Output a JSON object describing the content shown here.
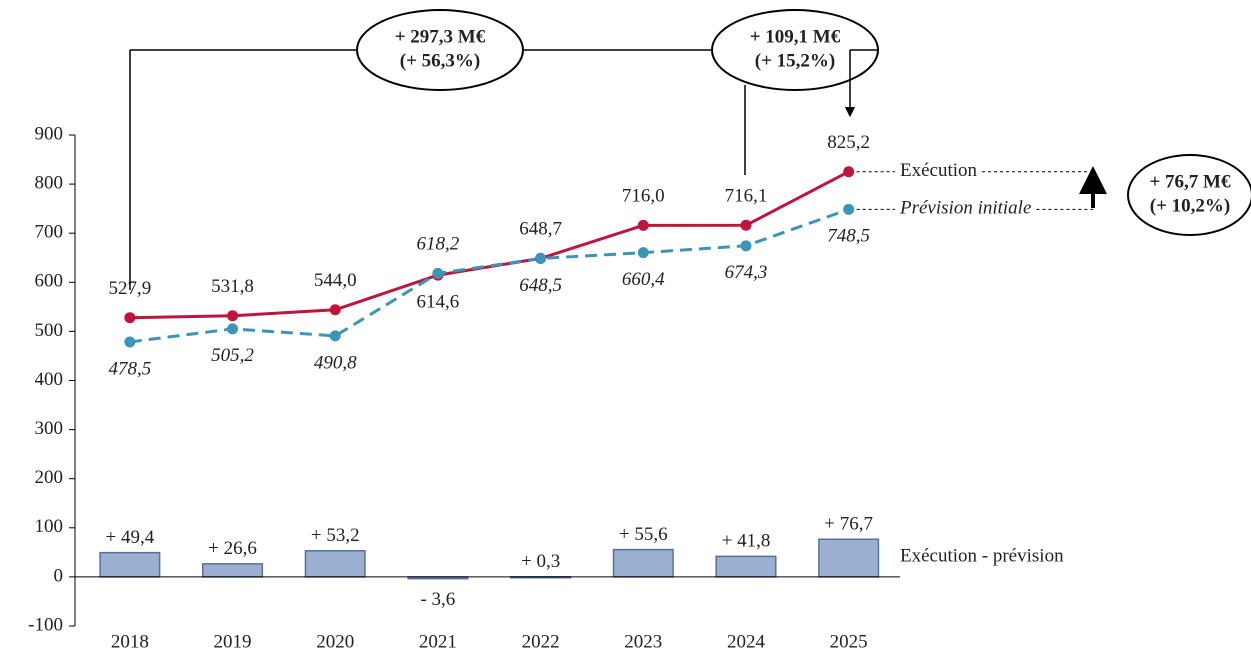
{
  "chart_data": {
    "type": "line-bar",
    "categories": [
      "2018",
      "2019",
      "2020",
      "2021",
      "2022",
      "2023",
      "2024",
      "2025"
    ],
    "ylim": [
      -100,
      900
    ],
    "yticks": [
      -100,
      0,
      100,
      200,
      300,
      400,
      500,
      600,
      700,
      800,
      900
    ],
    "series": [
      {
        "name": "Exécution",
        "type": "line",
        "color": "#c0143c",
        "values": [
          527.9,
          531.8,
          544.0,
          614.6,
          648.7,
          716.0,
          716.1,
          825.2
        ],
        "value_labels": [
          "527,9",
          "531,8",
          "544,0",
          "614,6",
          "648,7",
          "716,0",
          "716,1",
          "825,2"
        ]
      },
      {
        "name": "Prévision initiale",
        "type": "line",
        "dashed": true,
        "color": "#3a96b9",
        "values": [
          478.5,
          505.2,
          490.8,
          618.2,
          648.5,
          660.4,
          674.3,
          748.5
        ],
        "value_labels": [
          "478,5",
          "505,2",
          "490,8",
          "618,2",
          "648,5",
          "660,4",
          "674,3",
          "748,5"
        ]
      },
      {
        "name": "Exécution - prévision",
        "type": "bar",
        "color": "#9bafd0",
        "values": [
          49.4,
          26.6,
          53.2,
          -3.6,
          0.3,
          55.6,
          41.8,
          76.7
        ],
        "value_labels": [
          "+ 49,4",
          "+ 26,6",
          "+ 53,2",
          "- 3,6",
          "+ 0,3",
          "+ 55,6",
          "+ 41,8",
          "+ 76,7"
        ]
      }
    ],
    "annotations": [
      {
        "lines": [
          "+ 297,3 M€",
          "(+ 56,3%)"
        ]
      },
      {
        "lines": [
          "+ 109,1 M€",
          "(+ 15,2%)"
        ]
      },
      {
        "lines": [
          "+ 76,7 M€",
          "(+ 10,2%)"
        ]
      }
    ]
  }
}
